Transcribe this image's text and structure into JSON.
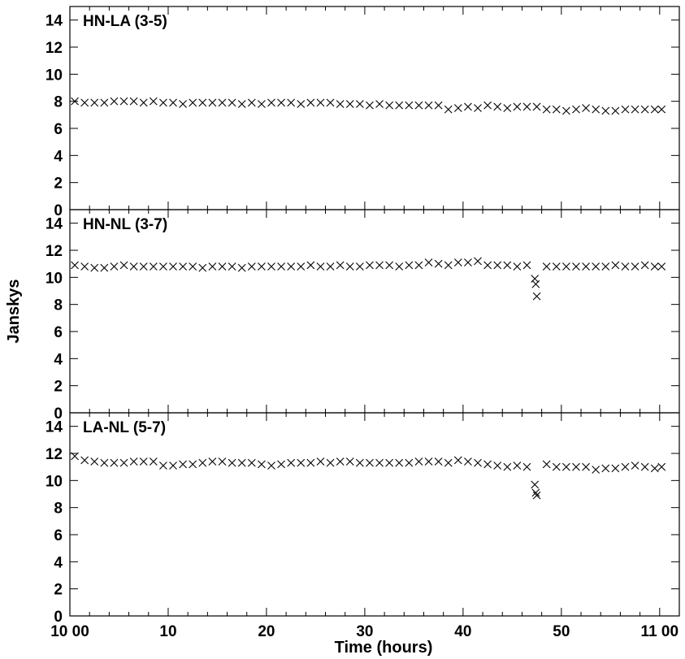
{
  "chart_data": {
    "type": "scatter",
    "marker": "x",
    "color": "#000000",
    "xlabel": "Time (hours)",
    "ylabel": "Janskys",
    "x_ticks": [
      {
        "value": 0,
        "label": "10 00"
      },
      {
        "value": 10,
        "label": "10"
      },
      {
        "value": 20,
        "label": "20"
      },
      {
        "value": 30,
        "label": "30"
      },
      {
        "value": 40,
        "label": "40"
      },
      {
        "value": 50,
        "label": "50"
      },
      {
        "value": 60,
        "label": "11 00"
      }
    ],
    "xlim": [
      0,
      62
    ],
    "ylim": [
      0,
      15
    ],
    "y_ticks": [
      "0",
      "2",
      "4",
      "6",
      "8",
      "10",
      "12",
      "14"
    ],
    "grid": false,
    "legend": "none",
    "panels": [
      {
        "label": "HN-LA (3-5)",
        "x": [
          0.5,
          1.5,
          2.5,
          3.5,
          4.5,
          5.5,
          6.5,
          7.5,
          8.5,
          9.5,
          10.5,
          11.5,
          12.5,
          13.5,
          14.5,
          15.5,
          16.5,
          17.5,
          18.5,
          19.5,
          20.5,
          21.5,
          22.5,
          23.5,
          24.5,
          25.5,
          26.5,
          27.5,
          28.5,
          29.5,
          30.5,
          31.5,
          32.5,
          33.5,
          34.5,
          35.5,
          36.5,
          37.5,
          38.5,
          39.5,
          40.5,
          41.5,
          42.5,
          43.5,
          44.5,
          45.5,
          46.5,
          47.5,
          48.5,
          49.5,
          50.5,
          51.5,
          52.5,
          53.5,
          54.5,
          55.5,
          56.5,
          57.5,
          58.5,
          59.5,
          60.2
        ],
        "y": [
          8.0,
          7.9,
          7.9,
          7.9,
          8.0,
          8.0,
          8.0,
          7.9,
          8.0,
          7.9,
          7.9,
          7.8,
          7.9,
          7.9,
          7.9,
          7.9,
          7.9,
          7.8,
          7.9,
          7.8,
          7.9,
          7.9,
          7.9,
          7.8,
          7.9,
          7.9,
          7.9,
          7.8,
          7.8,
          7.8,
          7.7,
          7.8,
          7.7,
          7.7,
          7.7,
          7.7,
          7.7,
          7.7,
          7.4,
          7.5,
          7.6,
          7.5,
          7.7,
          7.6,
          7.5,
          7.6,
          7.6,
          7.6,
          7.4,
          7.4,
          7.3,
          7.4,
          7.5,
          7.4,
          7.3,
          7.3,
          7.4,
          7.4,
          7.4,
          7.4,
          7.4
        ]
      },
      {
        "label": "HN-NL (3-7)",
        "x": [
          0.5,
          1.5,
          2.5,
          3.5,
          4.5,
          5.5,
          6.5,
          7.5,
          8.5,
          9.5,
          10.5,
          11.5,
          12.5,
          13.5,
          14.5,
          15.5,
          16.5,
          17.5,
          18.5,
          19.5,
          20.5,
          21.5,
          22.5,
          23.5,
          24.5,
          25.5,
          26.5,
          27.5,
          28.5,
          29.5,
          30.5,
          31.5,
          32.5,
          33.5,
          34.5,
          35.5,
          36.5,
          37.5,
          38.5,
          39.5,
          40.5,
          41.5,
          42.5,
          43.5,
          44.5,
          45.5,
          46.5,
          47.3,
          47.4,
          47.5,
          48.5,
          49.5,
          50.5,
          51.5,
          52.5,
          53.5,
          54.5,
          55.5,
          56.5,
          57.5,
          58.5,
          59.5,
          60.2
        ],
        "y": [
          10.9,
          10.8,
          10.7,
          10.7,
          10.8,
          10.9,
          10.8,
          10.8,
          10.8,
          10.8,
          10.8,
          10.8,
          10.8,
          10.7,
          10.8,
          10.8,
          10.8,
          10.7,
          10.8,
          10.8,
          10.8,
          10.8,
          10.8,
          10.8,
          10.9,
          10.8,
          10.8,
          10.9,
          10.8,
          10.8,
          10.9,
          10.9,
          10.9,
          10.8,
          10.9,
          10.9,
          11.1,
          11.0,
          10.9,
          11.1,
          11.1,
          11.2,
          10.9,
          10.9,
          10.9,
          10.8,
          10.9,
          9.9,
          9.5,
          8.6,
          10.8,
          10.8,
          10.8,
          10.8,
          10.8,
          10.8,
          10.8,
          10.9,
          10.8,
          10.8,
          10.9,
          10.8,
          10.8
        ]
      },
      {
        "label": "LA-NL (5-7)",
        "x": [
          0.5,
          1.5,
          2.5,
          3.5,
          4.5,
          5.5,
          6.5,
          7.5,
          8.5,
          9.5,
          10.5,
          11.5,
          12.5,
          13.5,
          14.5,
          15.5,
          16.5,
          17.5,
          18.5,
          19.5,
          20.5,
          21.5,
          22.5,
          23.5,
          24.5,
          25.5,
          26.5,
          27.5,
          28.5,
          29.5,
          30.5,
          31.5,
          32.5,
          33.5,
          34.5,
          35.5,
          36.5,
          37.5,
          38.5,
          39.5,
          40.5,
          41.5,
          42.5,
          43.5,
          44.5,
          45.5,
          46.5,
          47.3,
          47.4,
          47.5,
          48.5,
          49.5,
          50.5,
          51.5,
          52.5,
          53.5,
          54.5,
          55.5,
          56.5,
          57.5,
          58.5,
          59.5,
          60.2
        ],
        "y": [
          11.8,
          11.5,
          11.4,
          11.3,
          11.3,
          11.3,
          11.4,
          11.4,
          11.4,
          11.1,
          11.1,
          11.2,
          11.2,
          11.3,
          11.4,
          11.4,
          11.3,
          11.3,
          11.3,
          11.2,
          11.1,
          11.2,
          11.3,
          11.3,
          11.3,
          11.4,
          11.3,
          11.4,
          11.4,
          11.3,
          11.3,
          11.3,
          11.3,
          11.3,
          11.3,
          11.4,
          11.4,
          11.4,
          11.3,
          11.5,
          11.4,
          11.3,
          11.2,
          11.1,
          11.0,
          11.1,
          11.0,
          9.7,
          9.1,
          8.9,
          11.2,
          11.0,
          11.0,
          11.0,
          11.0,
          10.8,
          10.9,
          10.9,
          11.0,
          11.1,
          11.0,
          10.9,
          11.0
        ]
      }
    ]
  }
}
